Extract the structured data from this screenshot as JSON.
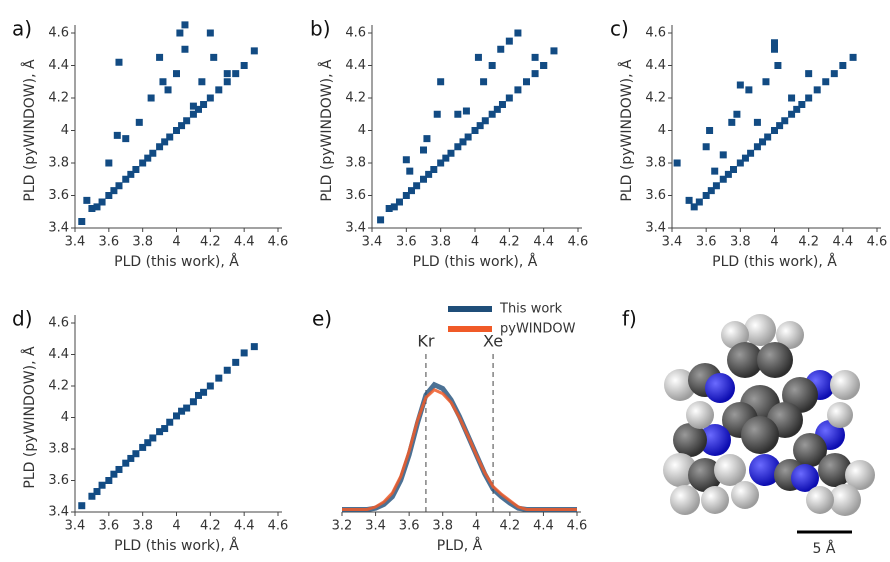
{
  "chart_data": [
    {
      "type": "scatter",
      "panel_label": "a)",
      "x_label": "PLD (this work), Å",
      "y_label": "PLD (pyWINDOW), Å",
      "color": "#124b83",
      "x": [
        3.44,
        3.5,
        3.53,
        3.56,
        3.6,
        3.63,
        3.66,
        3.7,
        3.73,
        3.76,
        3.8,
        3.83,
        3.86,
        3.9,
        3.93,
        3.96,
        4.0,
        4.03,
        4.06,
        4.1,
        4.13,
        4.16,
        4.2,
        4.25,
        4.3,
        4.35,
        4.4,
        4.46,
        3.47,
        3.6,
        3.65,
        3.66,
        3.7,
        3.78,
        3.85,
        3.9,
        3.92,
        3.95,
        4.0,
        4.02,
        4.05,
        4.05,
        4.1,
        4.15,
        4.2,
        4.22,
        4.3
      ],
      "values": [
        3.44,
        3.52,
        3.53,
        3.56,
        3.6,
        3.63,
        3.66,
        3.7,
        3.73,
        3.76,
        3.8,
        3.83,
        3.86,
        3.9,
        3.93,
        3.96,
        4.0,
        4.03,
        4.06,
        4.1,
        4.13,
        4.16,
        4.2,
        4.25,
        4.3,
        4.35,
        4.4,
        4.49,
        3.57,
        3.8,
        3.97,
        4.42,
        3.95,
        4.05,
        4.2,
        4.45,
        4.3,
        4.25,
        4.35,
        4.6,
        4.65,
        4.5,
        4.15,
        4.3,
        4.6,
        4.45,
        4.35
      ],
      "xlim": [
        3.4,
        4.6
      ],
      "ylim": [
        3.4,
        4.6
      ],
      "xticks": [
        3.4,
        3.6,
        3.8,
        4,
        4.2,
        4.4,
        4.6
      ],
      "yticks": [
        3.4,
        3.6,
        3.8,
        4,
        4.2,
        4.4,
        4.6
      ]
    },
    {
      "type": "scatter",
      "panel_label": "b)",
      "x_label": "PLD (this work), Å",
      "y_label": "PLD (pyWINDOW), Å",
      "color": "#124b83",
      "x": [
        3.5,
        3.53,
        3.56,
        3.6,
        3.63,
        3.66,
        3.7,
        3.73,
        3.76,
        3.8,
        3.83,
        3.86,
        3.9,
        3.93,
        3.96,
        4.0,
        4.03,
        4.06,
        4.1,
        4.13,
        4.16,
        4.2,
        4.25,
        4.3,
        4.35,
        4.4,
        4.46,
        3.45,
        3.6,
        3.62,
        3.7,
        3.72,
        3.78,
        3.8,
        3.9,
        3.95,
        4.0,
        4.02,
        4.05,
        4.1,
        4.15,
        4.2,
        4.25,
        4.35,
        4.4
      ],
      "values": [
        3.52,
        3.53,
        3.56,
        3.6,
        3.63,
        3.66,
        3.7,
        3.73,
        3.76,
        3.8,
        3.83,
        3.86,
        3.9,
        3.93,
        3.96,
        4.0,
        4.03,
        4.06,
        4.1,
        4.13,
        4.16,
        4.2,
        4.25,
        4.3,
        4.35,
        4.4,
        4.49,
        3.45,
        3.82,
        3.75,
        3.88,
        3.95,
        4.1,
        4.3,
        4.1,
        4.12,
        4.0,
        4.45,
        4.3,
        4.4,
        4.5,
        4.55,
        4.6,
        4.45,
        4.4
      ],
      "xlim": [
        3.4,
        4.6
      ],
      "ylim": [
        3.4,
        4.6
      ],
      "xticks": [
        3.4,
        3.6,
        3.8,
        4,
        4.2,
        4.4,
        4.6
      ],
      "yticks": [
        3.4,
        3.6,
        3.8,
        4,
        4.2,
        4.4,
        4.6
      ]
    },
    {
      "type": "scatter",
      "panel_label": "c)",
      "x_label": "PLD (this work), Å",
      "y_label": "PLD (pyWINDOW), Å",
      "color": "#124b83",
      "x": [
        3.53,
        3.56,
        3.6,
        3.63,
        3.66,
        3.7,
        3.73,
        3.76,
        3.8,
        3.83,
        3.86,
        3.9,
        3.93,
        3.96,
        4.0,
        4.03,
        4.06,
        4.1,
        4.13,
        4.16,
        4.2,
        4.25,
        4.3,
        4.35,
        4.4,
        4.46,
        3.43,
        3.5,
        3.6,
        3.62,
        3.65,
        3.7,
        3.75,
        3.78,
        3.8,
        3.85,
        3.9,
        3.95,
        4.0,
        4.0,
        4.02,
        4.1,
        4.2
      ],
      "values": [
        3.53,
        3.56,
        3.6,
        3.63,
        3.66,
        3.7,
        3.73,
        3.76,
        3.8,
        3.83,
        3.86,
        3.9,
        3.93,
        3.96,
        4.0,
        4.03,
        4.06,
        4.1,
        4.13,
        4.16,
        4.2,
        4.25,
        4.3,
        4.35,
        4.4,
        4.45,
        3.8,
        3.57,
        3.9,
        4.0,
        3.75,
        3.85,
        4.05,
        4.1,
        4.28,
        4.25,
        4.05,
        4.3,
        4.54,
        4.5,
        4.4,
        4.2,
        4.35
      ],
      "xlim": [
        3.4,
        4.6
      ],
      "ylim": [
        3.4,
        4.6
      ],
      "xticks": [
        3.4,
        3.6,
        3.8,
        4,
        4.2,
        4.4,
        4.6
      ],
      "yticks": [
        3.4,
        3.6,
        3.8,
        4,
        4.2,
        4.4,
        4.6
      ]
    },
    {
      "type": "scatter",
      "panel_label": "d)",
      "x_label": "PLD (this work), Å",
      "y_label": "PLD (pyWINDOW), Å",
      "color": "#124b83",
      "x": [
        3.44,
        3.5,
        3.53,
        3.56,
        3.6,
        3.63,
        3.66,
        3.7,
        3.73,
        3.76,
        3.8,
        3.83,
        3.86,
        3.9,
        3.93,
        3.96,
        4.0,
        4.03,
        4.06,
        4.1,
        4.13,
        4.16,
        4.2,
        4.25,
        4.3,
        4.35,
        4.4,
        4.46
      ],
      "values": [
        3.44,
        3.5,
        3.53,
        3.57,
        3.6,
        3.64,
        3.67,
        3.71,
        3.74,
        3.77,
        3.81,
        3.84,
        3.87,
        3.91,
        3.93,
        3.97,
        4.01,
        4.04,
        4.06,
        4.1,
        4.14,
        4.16,
        4.2,
        4.25,
        4.3,
        4.35,
        4.41,
        4.45
      ],
      "xlim": [
        3.4,
        4.6
      ],
      "ylim": [
        3.4,
        4.6
      ],
      "xticks": [
        3.4,
        3.6,
        3.8,
        4,
        4.2,
        4.4,
        4.6
      ],
      "yticks": [
        3.4,
        3.6,
        3.8,
        4,
        4.2,
        4.4,
        4.6
      ]
    },
    {
      "type": "line",
      "panel_label": "e)",
      "x_label": "PLD, Å",
      "x": [
        3.2,
        3.25,
        3.3,
        3.35,
        3.4,
        3.45,
        3.5,
        3.55,
        3.6,
        3.65,
        3.7,
        3.75,
        3.8,
        3.85,
        3.9,
        3.95,
        4.0,
        4.05,
        4.1,
        4.15,
        4.2,
        4.25,
        4.3,
        4.35,
        4.4,
        4.45,
        4.5,
        4.55,
        4.6
      ],
      "series": [
        {
          "name": "This work",
          "color": "#1f4e79",
          "values": [
            0.02,
            0.02,
            0.02,
            0.02,
            0.03,
            0.06,
            0.12,
            0.25,
            0.45,
            0.7,
            0.92,
            1.0,
            0.97,
            0.88,
            0.75,
            0.6,
            0.45,
            0.3,
            0.18,
            0.12,
            0.07,
            0.03,
            0.02,
            0.02,
            0.02,
            0.02,
            0.02,
            0.02,
            0.02
          ]
        },
        {
          "name": "pyWINDOW",
          "color": "#f05a28",
          "values": [
            0.02,
            0.02,
            0.02,
            0.02,
            0.04,
            0.08,
            0.15,
            0.28,
            0.48,
            0.72,
            0.9,
            0.96,
            0.93,
            0.86,
            0.74,
            0.6,
            0.45,
            0.31,
            0.2,
            0.14,
            0.09,
            0.04,
            0.02,
            0.02,
            0.02,
            0.02,
            0.02,
            0.02,
            0.02
          ]
        }
      ],
      "annotations": [
        {
          "text": "Kr",
          "x": 3.7
        },
        {
          "text": "Xe",
          "x": 4.1
        }
      ],
      "xlim": [
        3.2,
        4.6
      ],
      "ylim": [
        0,
        1.1
      ],
      "xticks": [
        3.2,
        3.4,
        3.6,
        3.8,
        4,
        4.2,
        4.4,
        4.6
      ]
    }
  ],
  "panel_f": {
    "label": "f)",
    "scale_bar": "5 Å"
  }
}
